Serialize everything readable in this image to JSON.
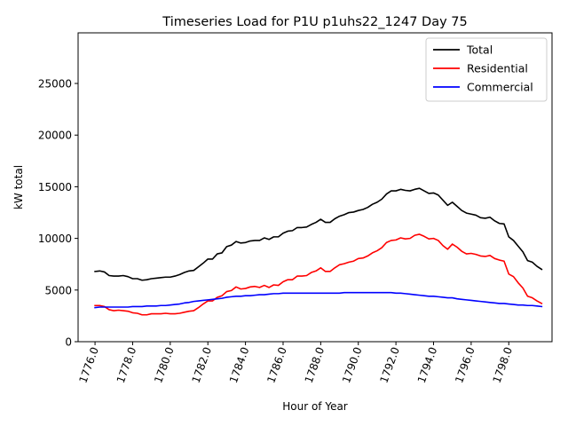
{
  "chart_data": {
    "type": "line",
    "title": "Timeseries Load for P1U p1uhs22_1247  Day 75",
    "xlabel": "Hour of Year",
    "ylabel": "kW total",
    "xlim": [
      1775.1,
      1800.3
    ],
    "ylim": [
      0,
      29900
    ],
    "x_ticks": [
      1776,
      1778,
      1780,
      1782,
      1784,
      1786,
      1788,
      1790,
      1792,
      1794,
      1796,
      1798
    ],
    "x_tick_labels": [
      "1776.0",
      "1778.0",
      "1780.0",
      "1782.0",
      "1784.0",
      "1786.0",
      "1788.0",
      "1790.0",
      "1792.0",
      "1794.0",
      "1796.0",
      "1798.0"
    ],
    "y_ticks": [
      0,
      5000,
      10000,
      15000,
      20000,
      25000
    ],
    "y_tick_labels": [
      "0",
      "5000",
      "10000",
      "15000",
      "20000",
      "25000"
    ],
    "x": [
      1776.0,
      1776.25,
      1776.5,
      1776.75,
      1777.0,
      1777.25,
      1777.5,
      1777.75,
      1778.0,
      1778.25,
      1778.5,
      1778.75,
      1779.0,
      1779.25,
      1779.5,
      1779.75,
      1780.0,
      1780.25,
      1780.5,
      1780.75,
      1781.0,
      1781.25,
      1781.5,
      1781.75,
      1782.0,
      1782.25,
      1782.5,
      1782.75,
      1783.0,
      1783.25,
      1783.5,
      1783.75,
      1784.0,
      1784.25,
      1784.5,
      1784.75,
      1785.0,
      1785.25,
      1785.5,
      1785.75,
      1786.0,
      1786.25,
      1786.5,
      1786.75,
      1787.0,
      1787.25,
      1787.5,
      1787.75,
      1788.0,
      1788.25,
      1788.5,
      1788.75,
      1789.0,
      1789.25,
      1789.5,
      1789.75,
      1790.0,
      1790.25,
      1790.5,
      1790.75,
      1791.0,
      1791.25,
      1791.5,
      1791.75,
      1792.0,
      1792.25,
      1792.5,
      1792.75,
      1793.0,
      1793.25,
      1793.5,
      1793.75,
      1794.0,
      1794.25,
      1794.5,
      1794.75,
      1795.0,
      1795.25,
      1795.5,
      1795.75,
      1796.0,
      1796.25,
      1796.5,
      1796.75,
      1797.0,
      1797.25,
      1797.5,
      1797.75,
      1798.0,
      1798.25,
      1798.5,
      1798.75,
      1799.0,
      1799.25,
      1799.5,
      1799.75
    ],
    "series": [
      {
        "name": "Total",
        "color": "#000000",
        "values": [
          6800,
          6850,
          6750,
          6400,
          6350,
          6350,
          6400,
          6300,
          6100,
          6100,
          5950,
          6000,
          6100,
          6150,
          6200,
          6250,
          6250,
          6350,
          6500,
          6700,
          6850,
          6900,
          7250,
          7600,
          8000,
          8000,
          8500,
          8600,
          9200,
          9350,
          9700,
          9550,
          9600,
          9750,
          9800,
          9800,
          10050,
          9900,
          10150,
          10150,
          10500,
          10700,
          10750,
          11050,
          11050,
          11100,
          11350,
          11550,
          11850,
          11550,
          11550,
          11900,
          12150,
          12300,
          12500,
          12550,
          12700,
          12800,
          13000,
          13300,
          13500,
          13800,
          14300,
          14600,
          14600,
          14750,
          14650,
          14600,
          14750,
          14850,
          14600,
          14350,
          14400,
          14200,
          13700,
          13200,
          13500,
          13100,
          12700,
          12450,
          12350,
          12250,
          12000,
          11950,
          12050,
          11700,
          11450,
          11400,
          10150,
          9800,
          9250,
          8700,
          7850,
          7700,
          7300,
          7000
        ]
      },
      {
        "name": "Residential",
        "color": "#ff0000",
        "values": [
          3500,
          3500,
          3400,
          3100,
          3000,
          3050,
          3000,
          2950,
          2800,
          2750,
          2600,
          2600,
          2700,
          2700,
          2700,
          2750,
          2700,
          2700,
          2750,
          2850,
          2950,
          3000,
          3300,
          3650,
          3950,
          3950,
          4300,
          4450,
          4850,
          4950,
          5300,
          5100,
          5150,
          5300,
          5350,
          5250,
          5450,
          5250,
          5500,
          5450,
          5800,
          6000,
          6000,
          6350,
          6350,
          6400,
          6700,
          6850,
          7150,
          6800,
          6800,
          7150,
          7450,
          7550,
          7700,
          7800,
          8050,
          8100,
          8300,
          8600,
          8800,
          9100,
          9600,
          9800,
          9850,
          10050,
          9950,
          10000,
          10300,
          10400,
          10200,
          9950,
          10000,
          9800,
          9300,
          8950,
          9450,
          9150,
          8750,
          8500,
          8550,
          8450,
          8300,
          8250,
          8350,
          8050,
          7900,
          7800,
          6550,
          6300,
          5700,
          5200,
          4400,
          4250,
          3950,
          3700
        ]
      },
      {
        "name": "Commercial",
        "color": "#0000ff",
        "values": [
          3300,
          3350,
          3350,
          3350,
          3350,
          3350,
          3350,
          3350,
          3400,
          3400,
          3400,
          3450,
          3450,
          3450,
          3500,
          3500,
          3550,
          3600,
          3650,
          3750,
          3800,
          3900,
          3950,
          4000,
          4050,
          4100,
          4150,
          4200,
          4300,
          4350,
          4400,
          4400,
          4450,
          4450,
          4500,
          4550,
          4550,
          4600,
          4650,
          4650,
          4700,
          4700,
          4700,
          4700,
          4700,
          4700,
          4700,
          4700,
          4700,
          4700,
          4700,
          4700,
          4700,
          4750,
          4750,
          4750,
          4750,
          4750,
          4750,
          4750,
          4750,
          4750,
          4750,
          4750,
          4700,
          4700,
          4650,
          4600,
          4550,
          4500,
          4450,
          4400,
          4400,
          4350,
          4300,
          4250,
          4250,
          4150,
          4100,
          4050,
          4000,
          3950,
          3900,
          3850,
          3800,
          3750,
          3700,
          3700,
          3650,
          3600,
          3550,
          3550,
          3500,
          3500,
          3450,
          3400
        ]
      }
    ],
    "legend": {
      "position": "top-right",
      "entries": [
        "Total",
        "Residential",
        "Commercial"
      ]
    },
    "grid": false
  }
}
